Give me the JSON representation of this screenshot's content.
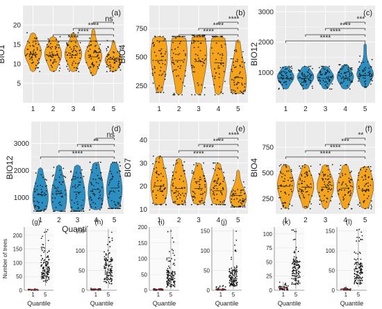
{
  "colors": {
    "panel_bg": "#ebebeb",
    "grid": "#ffffff",
    "orange": "#f5a31a",
    "blue": "#2b8fc1",
    "point": "#1a1a1a",
    "text": "#222222"
  },
  "common": {
    "quantile_label": "Quantile"
  },
  "chart_data": [
    {
      "id": "a",
      "type": "violin",
      "label": "(a)",
      "ylabel": "BIO1",
      "fill": "orange",
      "ylim": [
        0,
        25
      ],
      "yticks": [
        5,
        10,
        15,
        20
      ],
      "categories": [
        "1",
        "2",
        "3",
        "4",
        "5"
      ],
      "violins": [
        {
          "min": 8,
          "max": 18,
          "median": 12.5,
          "mode": 13,
          "q1": 11,
          "q3": 14
        },
        {
          "min": 8,
          "max": 17,
          "median": 12.3,
          "mode": 12.5,
          "q1": 11,
          "q3": 14
        },
        {
          "min": 8,
          "max": 18,
          "median": 12.2,
          "mode": 12.5,
          "q1": 11,
          "q3": 14
        },
        {
          "min": 7,
          "max": 19,
          "median": 11.8,
          "mode": 12,
          "q1": 10.5,
          "q3": 13.5
        },
        {
          "min": 8,
          "max": 16,
          "median": 11.2,
          "mode": 11,
          "q1": 10.5,
          "q3": 12.5
        }
      ],
      "brackets": [
        {
          "from": "1",
          "to": "5",
          "label": "****"
        },
        {
          "from": "2",
          "to": "5",
          "label": "****"
        },
        {
          "from": "3",
          "to": "5",
          "label": "****"
        },
        {
          "from": "4",
          "to": "5",
          "label": "ns"
        }
      ]
    },
    {
      "id": "b",
      "type": "violin",
      "label": "(b)",
      "ylabel": "BIO4",
      "fill": "orange",
      "ylim": [
        100,
        950
      ],
      "yticks": [
        250,
        500,
        750
      ],
      "categories": [
        "1",
        "2",
        "3",
        "4",
        "5"
      ],
      "violins": [
        {
          "min": 190,
          "max": 680,
          "median": 470,
          "mode": 510,
          "q1": 330,
          "q3": 560
        },
        {
          "min": 170,
          "max": 680,
          "median": 470,
          "mode": 530,
          "q1": 320,
          "q3": 560
        },
        {
          "min": 170,
          "max": 690,
          "median": 460,
          "mode": 520,
          "q1": 320,
          "q3": 560
        },
        {
          "min": 170,
          "max": 680,
          "median": 450,
          "mode": 510,
          "q1": 320,
          "q3": 560
        },
        {
          "min": 180,
          "max": 650,
          "median": 320,
          "mode": 290,
          "q1": 270,
          "q3": 470
        }
      ],
      "brackets": [
        {
          "from": "1",
          "to": "5",
          "label": "****"
        },
        {
          "from": "2",
          "to": "5",
          "label": "****"
        },
        {
          "from": "3",
          "to": "5",
          "label": "****"
        },
        {
          "from": "4",
          "to": "5",
          "label": "****"
        }
      ]
    },
    {
      "id": "c",
      "type": "violin",
      "label": "(c)",
      "ylabel": "BIO12",
      "fill": "blue",
      "ylim": [
        0,
        3200
      ],
      "yticks": [
        1000,
        2000,
        3000
      ],
      "categories": [
        "1",
        "2",
        "3",
        "4",
        "5"
      ],
      "violins": [
        {
          "min": 450,
          "max": 1200,
          "median": 800,
          "mode": 850,
          "q1": 700,
          "q3": 950
        },
        {
          "min": 450,
          "max": 1200,
          "median": 800,
          "mode": 850,
          "q1": 700,
          "q3": 950
        },
        {
          "min": 450,
          "max": 1200,
          "median": 800,
          "mode": 850,
          "q1": 700,
          "q3": 950
        },
        {
          "min": 450,
          "max": 1250,
          "median": 820,
          "mode": 850,
          "q1": 700,
          "q3": 980
        },
        {
          "min": 500,
          "max": 1950,
          "median": 900,
          "mode": 950,
          "q1": 800,
          "q3": 1050
        }
      ],
      "brackets": [
        {
          "from": "1",
          "to": "5",
          "label": "****"
        },
        {
          "from": "2",
          "to": "5",
          "label": "****"
        },
        {
          "from": "3",
          "to": "5",
          "label": "****"
        },
        {
          "from": "4",
          "to": "5",
          "label": "***"
        }
      ]
    },
    {
      "id": "d",
      "type": "violin",
      "label": "(d)",
      "ylabel": "BIO12",
      "xlabel": "Quantile",
      "fill": "blue",
      "ylim": [
        400,
        3800
      ],
      "yticks": [
        1000,
        2000,
        3000
      ],
      "categories": [
        "1",
        "2",
        "3",
        "4",
        "5"
      ],
      "violins": [
        {
          "min": 500,
          "max": 2100,
          "median": 1100,
          "mode": 1000,
          "q1": 850,
          "q3": 1500
        },
        {
          "min": 500,
          "max": 2200,
          "median": 1150,
          "mode": 1000,
          "q1": 850,
          "q3": 1600
        },
        {
          "min": 500,
          "max": 2200,
          "median": 1200,
          "mode": 1050,
          "q1": 850,
          "q3": 1650
        },
        {
          "min": 550,
          "max": 2300,
          "median": 1300,
          "mode": 1200,
          "q1": 900,
          "q3": 1700
        },
        {
          "min": 600,
          "max": 2300,
          "median": 1350,
          "mode": 1300,
          "q1": 1000,
          "q3": 1800
        }
      ],
      "brackets": [
        {
          "from": "1",
          "to": "5",
          "label": "****"
        },
        {
          "from": "2",
          "to": "5",
          "label": "****"
        },
        {
          "from": "3",
          "to": "5",
          "label": "**"
        },
        {
          "from": "4",
          "to": "5",
          "label": "ns"
        }
      ]
    },
    {
      "id": "e",
      "type": "violin",
      "label": "(e)",
      "ylabel": "BIO7",
      "fill": "orange",
      "ylim": [
        8,
        48
      ],
      "yticks": [
        10,
        20,
        30,
        40
      ],
      "categories": [
        "1",
        "2",
        "3",
        "4",
        "5"
      ],
      "violins": [
        {
          "min": 12,
          "max": 33,
          "median": 20,
          "mode": 20,
          "q1": 16,
          "q3": 25
        },
        {
          "min": 12,
          "max": 32,
          "median": 19,
          "mode": 19,
          "q1": 16,
          "q3": 24
        },
        {
          "min": 12,
          "max": 30,
          "median": 19,
          "mode": 19,
          "q1": 16,
          "q3": 23
        },
        {
          "min": 12,
          "max": 30,
          "median": 18,
          "mode": 18,
          "q1": 15,
          "q3": 22
        },
        {
          "min": 11,
          "max": 27,
          "median": 16,
          "mode": 15,
          "q1": 14,
          "q3": 19
        }
      ],
      "brackets": [
        {
          "from": "1",
          "to": "5",
          "label": "****"
        },
        {
          "from": "2",
          "to": "5",
          "label": "****"
        },
        {
          "from": "3",
          "to": "5",
          "label": "****"
        },
        {
          "from": "4",
          "to": "5",
          "label": "****"
        }
      ]
    },
    {
      "id": "f",
      "type": "violin",
      "label": "(f)",
      "ylabel": "BIO4",
      "fill": "orange",
      "ylim": [
        100,
        1000
      ],
      "yticks": [
        250,
        500,
        750
      ],
      "categories": [
        "1",
        "2",
        "3",
        "4",
        "5"
      ],
      "violins": [
        {
          "min": 150,
          "max": 580,
          "median": 370,
          "mode": 380,
          "q1": 300,
          "q3": 450
        },
        {
          "min": 150,
          "max": 580,
          "median": 360,
          "mode": 370,
          "q1": 300,
          "q3": 440
        },
        {
          "min": 150,
          "max": 580,
          "median": 360,
          "mode": 370,
          "q1": 300,
          "q3": 440
        },
        {
          "min": 150,
          "max": 580,
          "median": 350,
          "mode": 360,
          "q1": 290,
          "q3": 430
        },
        {
          "min": 150,
          "max": 560,
          "median": 330,
          "mode": 370,
          "q1": 250,
          "q3": 420
        }
      ],
      "brackets": [
        {
          "from": "1",
          "to": "5",
          "label": "****"
        },
        {
          "from": "2",
          "to": "5",
          "label": "****"
        },
        {
          "from": "3",
          "to": "5",
          "label": "***"
        },
        {
          "from": "4",
          "to": "5",
          "label": "**"
        }
      ]
    },
    {
      "id": "g",
      "type": "strip",
      "label": "(g)",
      "ylabel": "Number of trees",
      "xlabel": "Quantile",
      "ylim": [
        0,
        230
      ],
      "yticks": [
        0,
        50,
        100,
        150,
        200
      ],
      "categories": [
        "1",
        "5"
      ],
      "groups": [
        {
          "min": 0,
          "max": 5,
          "bulk_low": 0,
          "bulk_high": 3
        },
        {
          "min": 15,
          "max": 225,
          "bulk_low": 30,
          "bulk_high": 110
        }
      ]
    },
    {
      "id": "h",
      "type": "strip",
      "label": "(h)",
      "xlabel": "Quantile",
      "ylim": [
        0,
        160
      ],
      "yticks": [
        0,
        50,
        100,
        150
      ],
      "categories": [
        "1",
        "5"
      ],
      "groups": [
        {
          "min": 0,
          "max": 6,
          "bulk_low": 0,
          "bulk_high": 3
        },
        {
          "min": 5,
          "max": 155,
          "bulk_low": 15,
          "bulk_high": 80
        }
      ]
    },
    {
      "id": "i",
      "type": "strip",
      "label": "(i)",
      "xlabel": "Quantile",
      "ylim": [
        0,
        200
      ],
      "yticks": [
        0,
        50,
        100,
        150,
        200
      ],
      "categories": [
        "1",
        "5"
      ],
      "groups": [
        {
          "min": 0,
          "max": 5,
          "bulk_low": 0,
          "bulk_high": 3
        },
        {
          "min": 3,
          "max": 195,
          "bulk_low": 10,
          "bulk_high": 60
        }
      ]
    },
    {
      "id": "j",
      "type": "strip",
      "label": "(j)",
      "xlabel": "Quantile",
      "ylim": [
        0,
        160
      ],
      "yticks": [
        0,
        50,
        100,
        150
      ],
      "categories": [
        "1",
        "5"
      ],
      "groups": [
        {
          "min": 0,
          "max": 12,
          "bulk_low": 0,
          "bulk_high": 4
        },
        {
          "min": 3,
          "max": 155,
          "bulk_low": 10,
          "bulk_high": 55
        }
      ]
    },
    {
      "id": "k",
      "type": "strip",
      "label": "(k)",
      "xlabel": "Quantile",
      "ylim": [
        0,
        112
      ],
      "yticks": [
        0,
        25,
        50,
        75,
        100
      ],
      "categories": [
        "1",
        "5"
      ],
      "groups": [
        {
          "min": 0,
          "max": 15,
          "bulk_low": 0,
          "bulk_high": 8
        },
        {
          "min": 2,
          "max": 110,
          "bulk_low": 10,
          "bulk_high": 55
        }
      ]
    },
    {
      "id": "l",
      "type": "strip",
      "label": "(l)",
      "xlabel": "Quantile",
      "ylim": [
        0,
        160
      ],
      "yticks": [
        0,
        50,
        100,
        150
      ],
      "categories": [
        "1",
        "5"
      ],
      "groups": [
        {
          "min": 0,
          "max": 8,
          "bulk_low": 0,
          "bulk_high": 4
        },
        {
          "min": 8,
          "max": 155,
          "bulk_low": 15,
          "bulk_high": 70
        }
      ]
    }
  ]
}
